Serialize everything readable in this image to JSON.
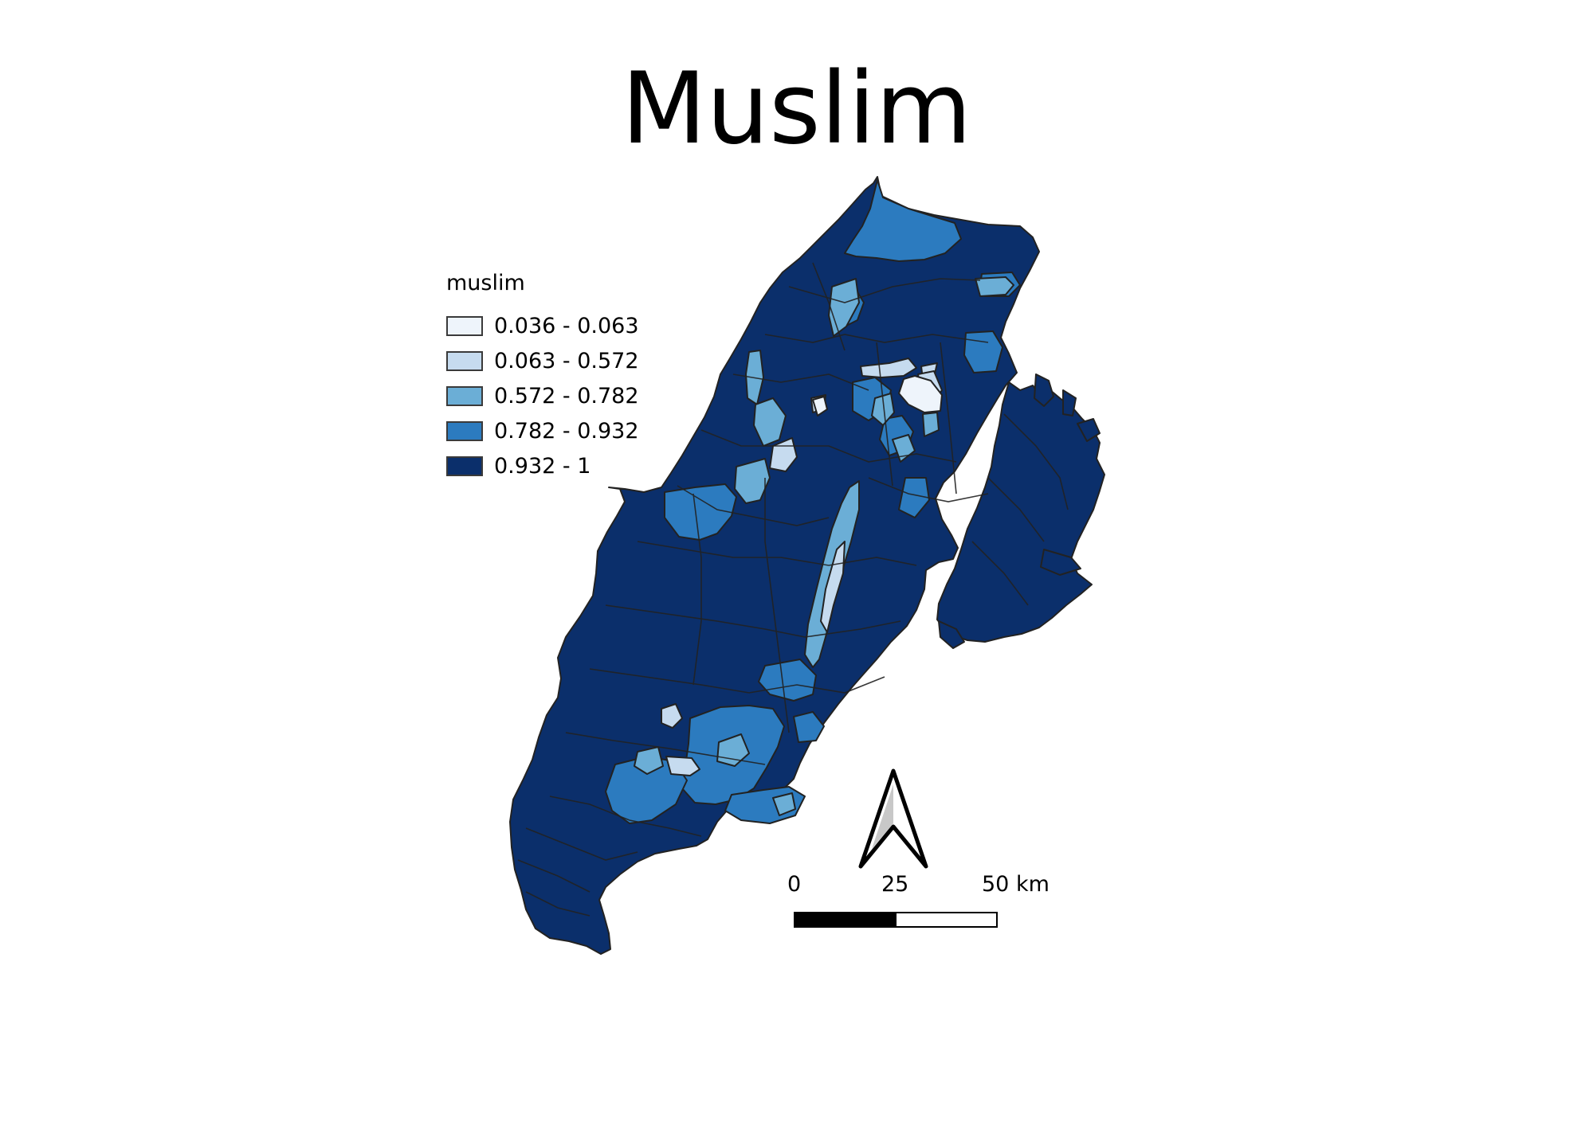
{
  "title": "Muslim",
  "legend": {
    "title": "muslim",
    "items": [
      {
        "label": "0.036 - 0.063",
        "color": "#eef4fb"
      },
      {
        "label": "0.063 - 0.572",
        "color": "#c6dbef"
      },
      {
        "label": "0.572 - 0.782",
        "color": "#6baed6"
      },
      {
        "label": "0.782 - 0.932",
        "color": "#2c7bbf"
      },
      {
        "label": "0.932 - 1",
        "color": "#0b2f6b"
      }
    ]
  },
  "scale_bar": {
    "labels": [
      "0",
      "25",
      "50 km"
    ]
  },
  "north_arrow": {
    "icon": "north-arrow-icon"
  },
  "colors": {
    "boundary": "#222222",
    "fill_default": "#0b2f6b"
  }
}
